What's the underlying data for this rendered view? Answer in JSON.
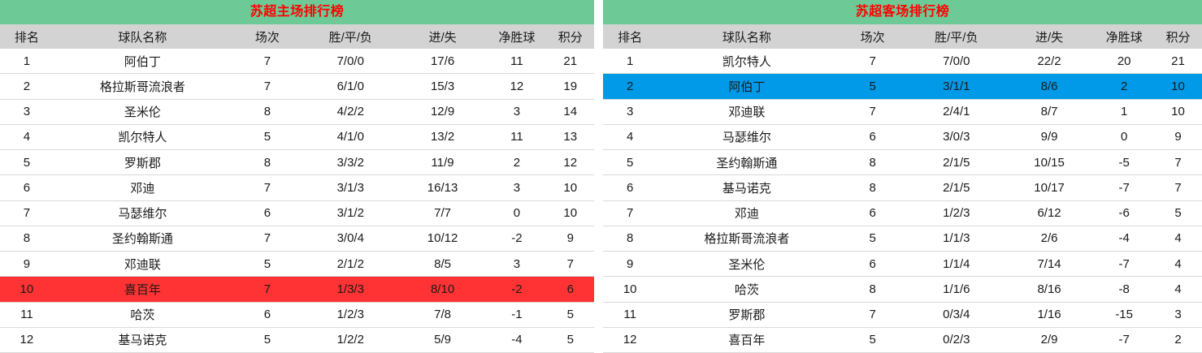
{
  "colors": {
    "title_bar_green": "#6DCA96",
    "title_text_red": "#FF0000",
    "column_header_gray": "#D3D3D3",
    "highlight_red": "#FF3333",
    "highlight_blue": "#009AE8",
    "row_divider": "#D9D9D9",
    "body_text": "#1A1A1A"
  },
  "tables": [
    {
      "title": "苏超主场排行榜",
      "columns": [
        "排名",
        "球队名称",
        "场次",
        "胜/平/负",
        "进/失",
        "净胜球",
        "积分"
      ],
      "rows": [
        {
          "cells": [
            "1",
            "阿伯丁",
            "7",
            "7/0/0",
            "17/6",
            "11",
            "21"
          ],
          "highlight": null
        },
        {
          "cells": [
            "2",
            "格拉斯哥流浪者",
            "7",
            "6/1/0",
            "15/3",
            "12",
            "19"
          ],
          "highlight": null
        },
        {
          "cells": [
            "3",
            "圣米伦",
            "8",
            "4/2/2",
            "12/9",
            "3",
            "14"
          ],
          "highlight": null
        },
        {
          "cells": [
            "4",
            "凯尔特人",
            "5",
            "4/1/0",
            "13/2",
            "11",
            "13"
          ],
          "highlight": null
        },
        {
          "cells": [
            "5",
            "罗斯郡",
            "8",
            "3/3/2",
            "11/9",
            "2",
            "12"
          ],
          "highlight": null
        },
        {
          "cells": [
            "6",
            "邓迪",
            "7",
            "3/1/3",
            "16/13",
            "3",
            "10"
          ],
          "highlight": null
        },
        {
          "cells": [
            "7",
            "马瑟维尔",
            "6",
            "3/1/2",
            "7/7",
            "0",
            "10"
          ],
          "highlight": null
        },
        {
          "cells": [
            "8",
            "圣约翰斯通",
            "7",
            "3/0/4",
            "10/12",
            "-2",
            "9"
          ],
          "highlight": null
        },
        {
          "cells": [
            "9",
            "邓迪联",
            "5",
            "2/1/2",
            "8/5",
            "3",
            "7"
          ],
          "highlight": null
        },
        {
          "cells": [
            "10",
            "喜百年",
            "7",
            "1/3/3",
            "8/10",
            "-2",
            "6"
          ],
          "highlight": "red"
        },
        {
          "cells": [
            "11",
            "哈茨",
            "6",
            "1/2/3",
            "7/8",
            "-1",
            "5"
          ],
          "highlight": null
        },
        {
          "cells": [
            "12",
            "基马诺克",
            "5",
            "1/2/2",
            "5/9",
            "-4",
            "5"
          ],
          "highlight": null
        }
      ]
    },
    {
      "title": "苏超客场排行榜",
      "columns": [
        "排名",
        "球队名称",
        "场次",
        "胜/平/负",
        "进/失",
        "净胜球",
        "积分"
      ],
      "rows": [
        {
          "cells": [
            "1",
            "凯尔特人",
            "7",
            "7/0/0",
            "22/2",
            "20",
            "21"
          ],
          "highlight": null
        },
        {
          "cells": [
            "2",
            "阿伯丁",
            "5",
            "3/1/1",
            "8/6",
            "2",
            "10"
          ],
          "highlight": "blue"
        },
        {
          "cells": [
            "3",
            "邓迪联",
            "7",
            "2/4/1",
            "8/7",
            "1",
            "10"
          ],
          "highlight": null
        },
        {
          "cells": [
            "4",
            "马瑟维尔",
            "6",
            "3/0/3",
            "9/9",
            "0",
            "9"
          ],
          "highlight": null
        },
        {
          "cells": [
            "5",
            "圣约翰斯通",
            "8",
            "2/1/5",
            "10/15",
            "-5",
            "7"
          ],
          "highlight": null
        },
        {
          "cells": [
            "6",
            "基马诺克",
            "8",
            "2/1/5",
            "10/17",
            "-7",
            "7"
          ],
          "highlight": null
        },
        {
          "cells": [
            "7",
            "邓迪",
            "6",
            "1/2/3",
            "6/12",
            "-6",
            "5"
          ],
          "highlight": null
        },
        {
          "cells": [
            "8",
            "格拉斯哥流浪者",
            "5",
            "1/1/3",
            "2/6",
            "-4",
            "4"
          ],
          "highlight": null
        },
        {
          "cells": [
            "9",
            "圣米伦",
            "6",
            "1/1/4",
            "7/14",
            "-7",
            "4"
          ],
          "highlight": null
        },
        {
          "cells": [
            "10",
            "哈茨",
            "8",
            "1/1/6",
            "8/16",
            "-8",
            "4"
          ],
          "highlight": null
        },
        {
          "cells": [
            "11",
            "罗斯郡",
            "7",
            "0/3/4",
            "1/16",
            "-15",
            "3"
          ],
          "highlight": null
        },
        {
          "cells": [
            "12",
            "喜百年",
            "5",
            "0/2/3",
            "2/9",
            "-7",
            "2"
          ],
          "highlight": null
        }
      ]
    }
  ]
}
